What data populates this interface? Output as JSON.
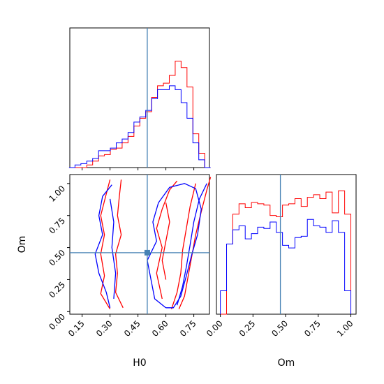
{
  "chart_data": {
    "type": "corner",
    "parameters": [
      "H0",
      "Om"
    ],
    "truth": {
      "H0": 0.5,
      "Om": 0.46
    },
    "colors": {
      "series_a": "#ff0000",
      "series_b": "#0000ff",
      "truth": "#4682b4"
    },
    "h0_hist": {
      "range": [
        0.08,
        0.84
      ],
      "series_a": [
        0,
        0,
        0,
        0.02,
        0.05,
        0.09,
        0.1,
        0.14,
        0.15,
        0.19,
        0.24,
        0.32,
        0.38,
        0.43,
        0.54,
        0.63,
        0.65,
        0.71,
        0.82,
        0.77,
        0.62,
        0.26,
        0.11,
        0
      ],
      "series_b": [
        0,
        0.02,
        0.03,
        0.05,
        0.07,
        0.13,
        0.13,
        0.15,
        0.19,
        0.22,
        0.27,
        0.35,
        0.39,
        0.44,
        0.53,
        0.6,
        0.6,
        0.63,
        0.6,
        0.5,
        0.38,
        0.19,
        0.06,
        0
      ]
    },
    "om_hist": {
      "range": [
        0,
        1.0
      ],
      "series_a": [
        0,
        0.54,
        0.77,
        0.85,
        0.82,
        0.86,
        0.85,
        0.84,
        0.76,
        0.75,
        0.84,
        0.85,
        0.89,
        0.83,
        0.9,
        0.92,
        0.89,
        0.94,
        0.78,
        0.95,
        0.77
      ],
      "series_b": [
        0.18,
        0.54,
        0.65,
        0.68,
        0.58,
        0.62,
        0.67,
        0.66,
        0.71,
        0.63,
        0.53,
        0.51,
        0.59,
        0.6,
        0.73,
        0.68,
        0.67,
        0.63,
        0.72,
        0.63,
        0.18
      ]
    },
    "contours": {
      "series_a": [
        [
          [
            0.3,
            0.02
          ],
          [
            0.25,
            0.14
          ],
          [
            0.27,
            0.28
          ],
          [
            0.25,
            0.45
          ],
          [
            0.27,
            0.6
          ],
          [
            0.25,
            0.75
          ],
          [
            0.28,
            0.92
          ],
          [
            0.3,
            1.03
          ]
        ],
        [
          [
            0.37,
            0.03
          ],
          [
            0.33,
            0.15
          ],
          [
            0.34,
            0.3
          ],
          [
            0.33,
            0.45
          ],
          [
            0.36,
            0.6
          ],
          [
            0.34,
            0.75
          ],
          [
            0.35,
            0.9
          ],
          [
            0.36,
            1.03
          ]
        ],
        [
          [
            0.67,
            0.02
          ],
          [
            0.7,
            0.12
          ],
          [
            0.72,
            0.28
          ],
          [
            0.74,
            0.44
          ],
          [
            0.76,
            0.6
          ],
          [
            0.79,
            0.78
          ],
          [
            0.82,
            0.95
          ],
          [
            0.84,
            1.05
          ]
        ],
        [
          [
            0.63,
            0.02
          ],
          [
            0.66,
            0.15
          ],
          [
            0.68,
            0.3
          ],
          [
            0.69,
            0.48
          ],
          [
            0.71,
            0.65
          ],
          [
            0.73,
            0.82
          ],
          [
            0.76,
            1.0
          ]
        ],
        [
          [
            0.58,
            0.1
          ],
          [
            0.55,
            0.3
          ],
          [
            0.58,
            0.5
          ],
          [
            0.55,
            0.65
          ],
          [
            0.58,
            0.8
          ],
          [
            0.62,
            0.95
          ],
          [
            0.66,
            1.02
          ]
        ],
        [
          [
            0.6,
            0.25
          ],
          [
            0.58,
            0.4
          ],
          [
            0.6,
            0.55
          ],
          [
            0.62,
            0.7
          ],
          [
            0.6,
            0.85
          ]
        ]
      ],
      "series_b": [
        [
          [
            0.3,
            0.03
          ],
          [
            0.28,
            0.15
          ],
          [
            0.24,
            0.3
          ],
          [
            0.22,
            0.45
          ],
          [
            0.26,
            0.6
          ],
          [
            0.24,
            0.75
          ],
          [
            0.26,
            0.9
          ],
          [
            0.31,
            0.99
          ]
        ],
        [
          [
            0.32,
            0.1
          ],
          [
            0.33,
            0.3
          ],
          [
            0.31,
            0.5
          ],
          [
            0.32,
            0.7
          ],
          [
            0.3,
            0.88
          ]
        ],
        [
          [
            0.6,
            0.03
          ],
          [
            0.54,
            0.1
          ],
          [
            0.52,
            0.25
          ],
          [
            0.5,
            0.4
          ],
          [
            0.55,
            0.55
          ],
          [
            0.53,
            0.7
          ],
          [
            0.56,
            0.85
          ],
          [
            0.62,
            0.97
          ],
          [
            0.7,
            1.0
          ],
          [
            0.76,
            0.96
          ],
          [
            0.79,
            0.8
          ],
          [
            0.77,
            0.6
          ],
          [
            0.74,
            0.45
          ],
          [
            0.71,
            0.28
          ],
          [
            0.68,
            0.12
          ],
          [
            0.64,
            0.03
          ],
          [
            0.6,
            0.03
          ]
        ],
        [
          [
            0.66,
            0.05
          ],
          [
            0.69,
            0.2
          ],
          [
            0.71,
            0.35
          ],
          [
            0.73,
            0.52
          ],
          [
            0.75,
            0.7
          ],
          [
            0.78,
            0.88
          ],
          [
            0.82,
            1.0
          ]
        ]
      ]
    },
    "axes": {
      "h0_ticks": [
        "0.15",
        "0.30",
        "0.45",
        "0.60",
        "0.75"
      ],
      "om_ticks": [
        "0.00",
        "0.25",
        "0.50",
        "0.75",
        "1.00"
      ],
      "om_hist_ticks": [
        "0.00",
        "0.25",
        "0.50",
        "0.75",
        "1.00"
      ],
      "h0_label": "H0",
      "om_label": "Om"
    }
  }
}
